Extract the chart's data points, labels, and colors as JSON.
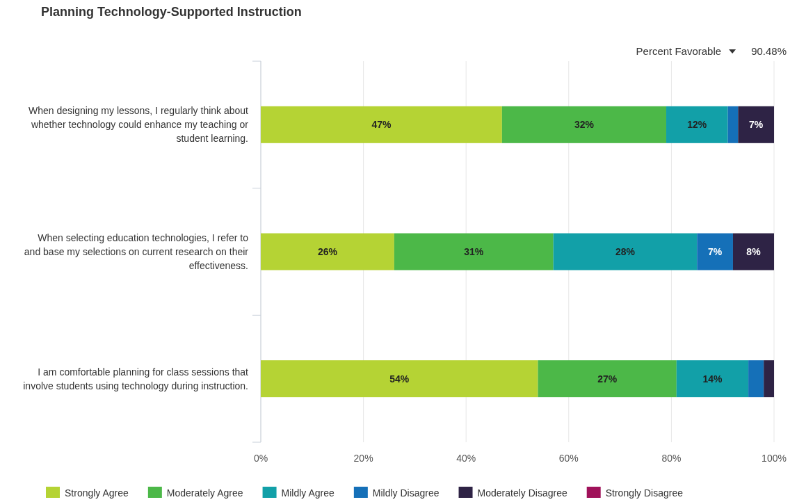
{
  "chart_data": {
    "type": "bar",
    "orientation": "horizontal",
    "stacked": true,
    "title": "Planning Technology-Supported Instruction",
    "annotations": [
      "Percent Favorable",
      "90.48%"
    ],
    "categories": [
      "When designing my lessons, I regularly think about whether technology could enhance my teaching or student learning.",
      "When selecting education technologies, I refer to and base my selections on current research on their effectiveness.",
      "I am comfortable planning for class sessions that involve students using technology during instruction."
    ],
    "series": [
      {
        "name": "Strongly Agree",
        "color": "#b5d334",
        "values": [
          47,
          26,
          54
        ],
        "value_labels": [
          "47%",
          "26%",
          "54%"
        ]
      },
      {
        "name": "Moderately Agree",
        "color": "#4cb848",
        "values": [
          32,
          31,
          27
        ],
        "value_labels": [
          "32%",
          "31%",
          "27%"
        ]
      },
      {
        "name": "Mildly Agree",
        "color": "#12a0a8",
        "values": [
          12,
          28,
          14
        ],
        "value_labels": [
          "12%",
          "28%",
          "14%"
        ]
      },
      {
        "name": "Mildly Disagree",
        "color": "#1570b8",
        "values": [
          2,
          7,
          3
        ],
        "value_labels": [
          null,
          "7%",
          null
        ]
      },
      {
        "name": "Moderately Disagree",
        "color": "#2e2345",
        "values": [
          7,
          8,
          2
        ],
        "value_labels": [
          "7%",
          "8%",
          null
        ]
      },
      {
        "name": "Strongly Disagree",
        "color": "#a0125a",
        "values": [
          0,
          0,
          0
        ],
        "value_labels": [
          null,
          null,
          null
        ]
      }
    ],
    "xlim": [
      0,
      100
    ],
    "xticks": [
      {
        "value": 0,
        "label": "0%"
      },
      {
        "value": 20,
        "label": "20%"
      },
      {
        "value": 40,
        "label": "40%"
      },
      {
        "value": 60,
        "label": "60%"
      },
      {
        "value": 80,
        "label": "80%"
      },
      {
        "value": 100,
        "label": "100%"
      }
    ],
    "grid": "x",
    "legend": "bottom"
  }
}
